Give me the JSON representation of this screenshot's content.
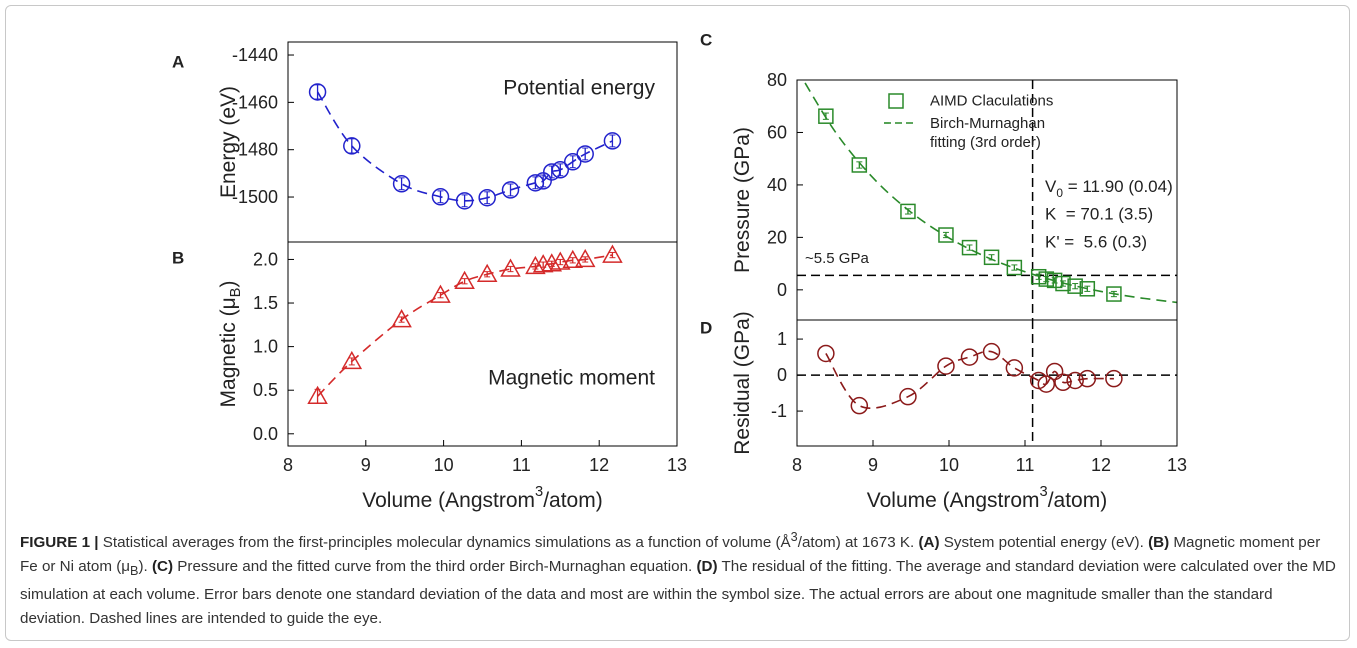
{
  "chart_data": [
    {
      "type": "line",
      "panel": "A",
      "color": "#2222cc",
      "marker": "circle",
      "line_style": "dashed",
      "y_label": [
        "Energy (eV)"
      ],
      "annotations": [
        "Potential energy"
      ],
      "x": [
        8.38,
        8.82,
        9.46,
        9.96,
        10.27,
        10.56,
        10.86,
        11.18,
        11.28,
        11.39,
        11.5,
        11.66,
        11.82,
        12.17
      ],
      "values": [
        -1455.6,
        -1478.4,
        -1494.4,
        -1499.9,
        -1501.6,
        -1500.3,
        -1497,
        -1494,
        -1493.2,
        -1489.4,
        -1488.5,
        -1485.1,
        -1481.8,
        -1476.3
      ],
      "errors": [
        3,
        3,
        2.5,
        2.5,
        2.5,
        2.5,
        2.5,
        2.5,
        2.5,
        2.5,
        2.5,
        2.5,
        2.5,
        2.5
      ],
      "xlim": [
        8,
        13
      ],
      "ylim": [
        -1519,
        -1434.5
      ],
      "yticks": [
        -1500,
        -1480,
        -1460,
        -1440
      ]
    },
    {
      "type": "line",
      "panel": "B",
      "color": "#d42a2a",
      "marker": "triangle",
      "line_style": "dashed",
      "y_label": [
        "Magnetic (μ",
        {
          "sub": "B"
        },
        ")"
      ],
      "x_label": [
        "Volume (Angstrom",
        {
          "sup": "3"
        },
        "/atom)"
      ],
      "annotations": [
        "Magnetic moment"
      ],
      "x": [
        8.38,
        8.82,
        9.46,
        9.96,
        10.27,
        10.56,
        10.86,
        11.18,
        11.28,
        11.39,
        11.5,
        11.66,
        11.82,
        12.17
      ],
      "values": [
        0.43,
        0.83,
        1.31,
        1.59,
        1.75,
        1.83,
        1.89,
        1.92,
        1.94,
        1.95,
        1.97,
        1.99,
        2.0,
        2.05
      ],
      "errors": [
        0.08,
        0.04,
        0.03,
        0.03,
        0.03,
        0.03,
        0.03,
        0.03,
        0.03,
        0.03,
        0.03,
        0.03,
        0.03,
        0.03
      ],
      "xlim": [
        8,
        13
      ],
      "xticks": [
        8,
        9,
        10,
        11,
        12,
        13
      ],
      "ylim": [
        -0.14,
        2.2
      ],
      "yticks": [
        {
          "value": 0,
          "label": "0.0"
        },
        0.5,
        {
          "value": 1,
          "label": "1.0"
        },
        1.5,
        {
          "value": 2,
          "label": "2.0"
        }
      ]
    },
    {
      "type": "line",
      "panel": "C",
      "y_label": [
        "Pressure (GPa)"
      ],
      "legend": "upper right",
      "annotations": [
        [
          "V",
          {
            "sub": "0"
          },
          " = 11.90 (0.04)"
        ],
        "K  = 70.1 (3.5)",
        "K' =  5.6 (0.3)"
      ],
      "reference_lines": {
        "x": 11.1,
        "y": 5.5,
        "label": "~5.5 GPa"
      },
      "x": [
        8.38,
        8.82,
        9.46,
        9.96,
        10.27,
        10.56,
        10.86,
        11.18,
        11.28,
        11.39,
        11.5,
        11.66,
        11.82,
        12.17
      ],
      "series": [
        {
          "name": "AIMD Claculations",
          "color": "#2a8a2a",
          "marker": "square",
          "values": [
            66.2,
            47.6,
            29.9,
            20.9,
            16.1,
            12.4,
            8.5,
            5.0,
            4.1,
            3.6,
            2.4,
            1.4,
            0.4,
            -1.6
          ],
          "errors": [
            1.2,
            1.2,
            1,
            1,
            1,
            1,
            1,
            1,
            1,
            1,
            1,
            1,
            1,
            1
          ]
        },
        {
          "name": "Birch-Murnaghan fitting (3rd order)",
          "color": "#2a8a2a",
          "line_style": "dashed",
          "x": [
            8,
            8.5,
            9,
            9.5,
            10,
            10.5,
            11,
            11.5,
            12,
            12.5,
            13
          ],
          "values": [
            84.1,
            60.4,
            42.7,
            29.6,
            19.8,
            12.4,
            6.9,
            2.6,
            -0.6,
            -3.0,
            -4.8
          ]
        }
      ],
      "xlim": [
        8,
        13
      ],
      "ylim": [
        -11.5,
        80
      ],
      "yticks": [
        0,
        20,
        40,
        60,
        80
      ]
    },
    {
      "type": "line",
      "panel": "D",
      "color": "#8b1a1a",
      "marker": "circle",
      "line_style": "dashed",
      "y_label": [
        "Residual (GPa)"
      ],
      "x_label": [
        "Volume (Angstrom",
        {
          "sup": "3"
        },
        "/atom)"
      ],
      "reference_lines": {
        "x": 11.1,
        "y": 0
      },
      "x": [
        8.38,
        8.82,
        9.46,
        9.96,
        10.27,
        10.56,
        10.86,
        11.18,
        11.28,
        11.39,
        11.5,
        11.66,
        11.82,
        12.17
      ],
      "values": [
        0.6,
        -0.85,
        -0.6,
        0.25,
        0.5,
        0.65,
        0.2,
        -0.15,
        -0.25,
        0.1,
        -0.2,
        -0.15,
        -0.1,
        -0.1
      ],
      "xlim": [
        8,
        13
      ],
      "xticks": [
        8,
        9,
        10,
        11,
        12,
        13
      ],
      "ylim": [
        -1.97,
        1.53
      ],
      "yticks": [
        -1,
        0,
        1
      ]
    }
  ],
  "caption": [
    {
      "b": "FIGURE 1 |"
    },
    " Statistical averages from the first-principles molecular dynamics simulations as a function of volume (Å",
    {
      "sup": "3"
    },
    "/atom) at 1673 K. ",
    {
      "b": "(A)"
    },
    " System potential energy (eV). ",
    {
      "b": "(B)"
    },
    " Magnetic moment per Fe or Ni atom (μ",
    {
      "sub": "B"
    },
    "). ",
    {
      "b": "(C)"
    },
    " Pressure and the fitted curve from the third order Birch-Murnaghan equation. ",
    {
      "b": "(D)"
    },
    " The residual of the fitting. The average and standard deviation were calculated over the MD simulation at each volume. Error bars denote one standard deviation of the data and most are within the symbol size. The actual errors are about one magnitude smaller than the standard deviation. Dashed lines are intended to guide the eye."
  ]
}
